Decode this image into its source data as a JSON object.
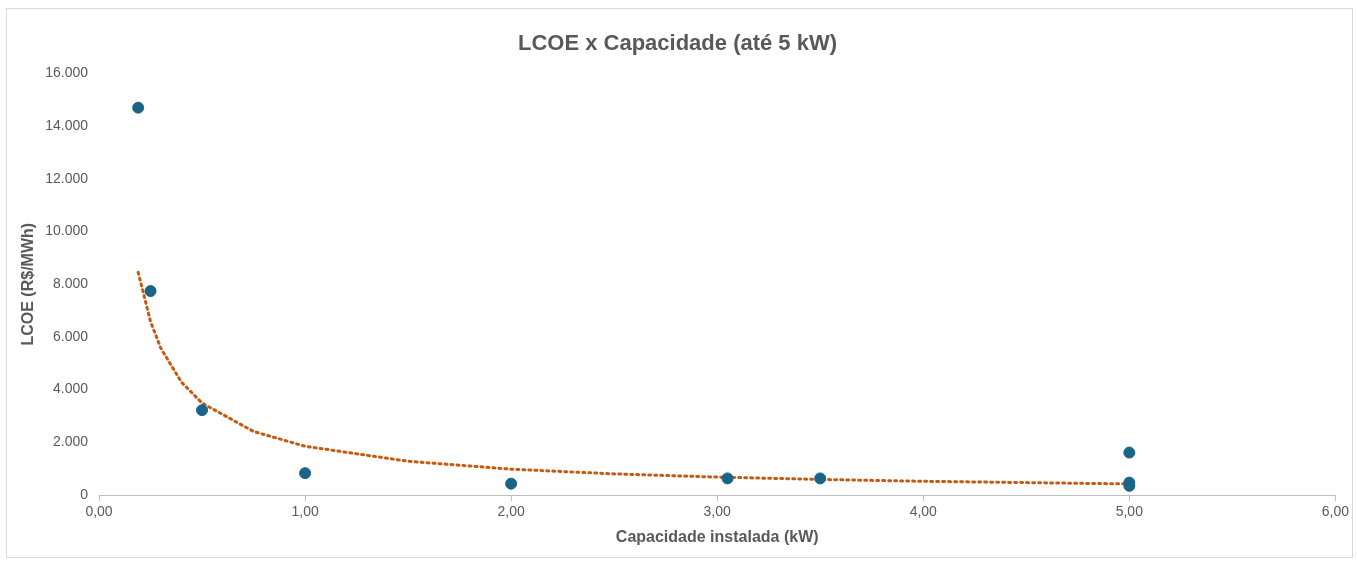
{
  "chart_data": {
    "type": "scatter",
    "title": "LCOE x Capacidade (até 5 kW)",
    "xlabel": "Capacidade instalada (kW)",
    "ylabel": "LCOE (R$/MWh)",
    "series": [
      {
        "type": "scatter",
        "color": "#1b6488",
        "x": [
          0.19,
          0.25,
          0.5,
          1.0,
          2.0,
          3.05,
          3.5,
          5.0,
          5.0,
          5.0
        ],
        "values": [
          14700,
          7740,
          3220,
          830,
          430,
          630,
          630,
          1610,
          470,
          350
        ]
      },
      {
        "type": "line",
        "color": "#c55a11",
        "line_style": "dotted",
        "marker": "none",
        "x": [
          0.19,
          0.25,
          0.3,
          0.4,
          0.5,
          0.75,
          1,
          1.5,
          2,
          2.5,
          3,
          3.5,
          4,
          4.5,
          5
        ],
        "values": [
          8450,
          6580,
          5570,
          4280,
          3490,
          2410,
          1850,
          1280,
          980,
          800,
          680,
          590,
          520,
          470,
          420
        ]
      }
    ],
    "marker": "circle",
    "grid": false,
    "legend": false,
    "xlim": [
      0,
      6
    ],
    "xticks": [
      {
        "value": 0,
        "label": "0,00"
      },
      {
        "value": 1,
        "label": "1,00"
      },
      {
        "value": 2,
        "label": "2,00"
      },
      {
        "value": 3,
        "label": "3,00"
      },
      {
        "value": 4,
        "label": "4,00"
      },
      {
        "value": 5,
        "label": "5,00"
      },
      {
        "value": 6,
        "label": "6,00"
      }
    ],
    "ylim": [
      0,
      16000
    ],
    "yticks": [
      0,
      {
        "value": 2000,
        "label": "2.000"
      },
      {
        "value": 4000,
        "label": "4.000"
      },
      {
        "value": 6000,
        "label": "6.000"
      },
      {
        "value": 8000,
        "label": "8.000"
      },
      {
        "value": 10000,
        "label": "10.000"
      },
      {
        "value": 12000,
        "label": "12.000"
      },
      {
        "value": 14000,
        "label": "14.000"
      },
      {
        "value": 16000,
        "label": "16.000"
      }
    ]
  }
}
